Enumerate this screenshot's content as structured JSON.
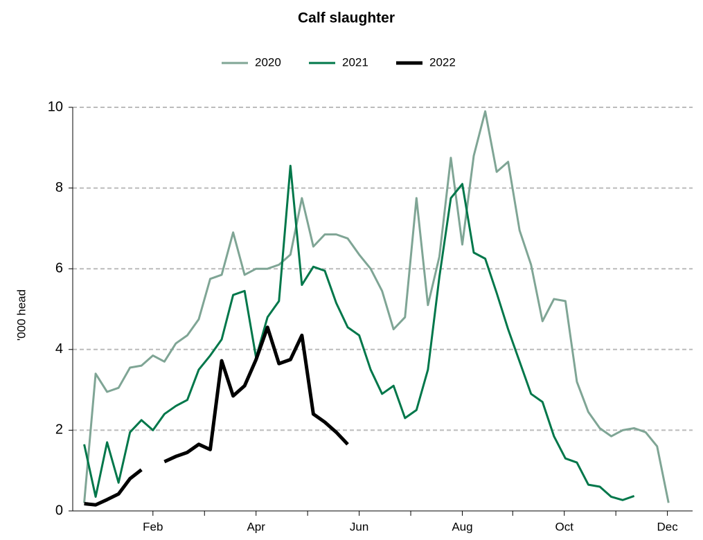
{
  "chart_data": {
    "type": "line",
    "title": "Calf slaughter",
    "ylabel": "'000 head",
    "x": [
      1,
      2,
      3,
      4,
      5,
      6,
      7,
      8,
      9,
      10,
      11,
      12,
      13,
      14,
      15,
      16,
      17,
      18,
      19,
      20,
      21,
      22,
      23,
      24,
      25,
      26,
      27,
      28,
      29,
      30,
      31,
      32,
      33,
      34,
      35,
      36,
      37,
      38,
      39,
      40,
      41,
      42,
      43,
      44,
      45,
      46,
      47,
      48,
      49,
      50,
      51,
      52
    ],
    "series": [
      {
        "name": "2020",
        "color": "#7fa595",
        "width": 3,
        "values": [
          0.2,
          3.4,
          2.95,
          3.05,
          3.55,
          3.6,
          3.85,
          3.7,
          4.15,
          4.35,
          4.75,
          5.75,
          5.85,
          6.9,
          5.85,
          6.0,
          6.0,
          6.1,
          6.35,
          7.75,
          6.55,
          6.85,
          6.85,
          6.75,
          6.35,
          6.0,
          5.45,
          4.5,
          4.8,
          7.75,
          5.1,
          6.3,
          8.75,
          6.6,
          8.8,
          9.9,
          8.4,
          8.65,
          6.95,
          6.1,
          4.7,
          5.25,
          5.2,
          3.2,
          2.45,
          2.05,
          1.85,
          2.0,
          2.05,
          1.95,
          1.6,
          0.2
        ]
      },
      {
        "name": "2021",
        "color": "#00774a",
        "width": 3,
        "values": [
          1.65,
          0.35,
          1.7,
          0.7,
          1.95,
          2.25,
          2.0,
          2.4,
          2.6,
          2.75,
          3.5,
          3.85,
          4.25,
          5.35,
          5.45,
          3.8,
          4.8,
          5.2,
          8.55,
          5.6,
          6.05,
          5.95,
          5.15,
          4.55,
          4.35,
          3.5,
          2.9,
          3.1,
          2.3,
          2.5,
          3.5,
          5.8,
          7.75,
          8.1,
          6.4,
          6.25,
          5.4,
          4.5,
          3.7,
          2.9,
          2.7,
          1.85,
          1.3,
          1.2,
          0.65,
          0.6,
          0.35,
          0.27,
          0.37,
          null,
          null,
          null
        ]
      },
      {
        "name": "2022",
        "color": "#000000",
        "width": 5,
        "values": [
          0.18,
          0.15,
          0.28,
          0.42,
          0.8,
          1.02,
          null,
          1.22,
          1.35,
          1.45,
          1.65,
          1.52,
          3.72,
          2.85,
          3.1,
          3.75,
          4.55,
          3.65,
          3.75,
          4.35,
          2.4,
          2.2,
          1.95,
          1.65,
          null,
          null,
          null,
          null,
          null,
          null,
          null,
          null,
          null,
          null,
          null,
          null,
          null,
          null,
          null,
          null,
          null,
          null,
          null,
          null,
          null,
          null,
          null,
          null,
          null,
          null,
          null,
          null
        ]
      }
    ],
    "xlim": [
      0,
      54.1
    ],
    "xticks": [
      {
        "value": 7,
        "label": "Feb"
      },
      {
        "value": 16,
        "label": "Apr"
      },
      {
        "value": 25,
        "label": "Jun"
      },
      {
        "value": 34,
        "label": "Aug"
      },
      {
        "value": 42.9,
        "label": "Oct"
      },
      {
        "value": 51.9,
        "label": "Dec"
      }
    ],
    "xminorticks": [
      11.5,
      20.5,
      29.5,
      38.4,
      47.4
    ],
    "ylim": [
      0,
      10
    ],
    "yticks": [
      0,
      2,
      4,
      6,
      8,
      10
    ],
    "grid": true,
    "legend": "top"
  }
}
